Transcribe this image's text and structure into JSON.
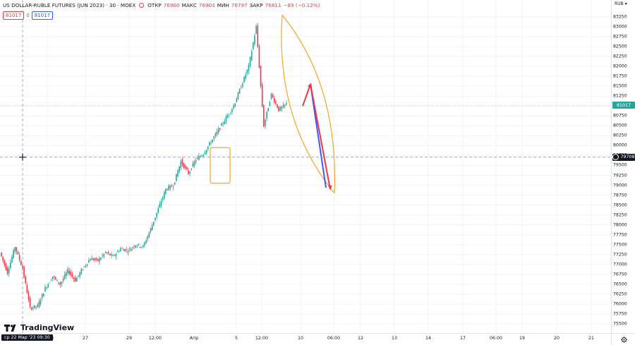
{
  "legend": {
    "title": "US DOLLAR-RUBLE FUTURES (JUN 2023) · 30 · MOEX",
    "open_label": "ОТКР",
    "open_value": "76900",
    "high_label": "МАКС",
    "high_value": "76903",
    "low_label": "МИН",
    "low_value": "76797",
    "close_label": "ЗАКР",
    "close_value": "76811",
    "change_value": "−89 (−0.12%)"
  },
  "price_boxes": {
    "bid": "81017",
    "spread": "0",
    "ask": "81017"
  },
  "currency": "RUB",
  "price_axis": {
    "ticks": [
      "83250",
      "83000",
      "82750",
      "82500",
      "82250",
      "82000",
      "81750",
      "81500",
      "81250",
      "81000",
      "80750",
      "80500",
      "80250",
      "80000",
      "79750",
      "79500",
      "79250",
      "79000",
      "78750",
      "78500",
      "78250",
      "78000",
      "77750",
      "77500",
      "77250",
      "77000",
      "76750",
      "76500",
      "76250",
      "76000",
      "75750",
      "75500"
    ],
    "last_price_tag": "81017",
    "crosshair_price_tag": "79708"
  },
  "time_axis": {
    "cursor_label": "ср 22 Мар '23  09:30",
    "labels": [
      "12:00",
      "27",
      "29",
      "12:00",
      "Апр",
      "5",
      "12:00",
      "10",
      "06:00",
      "12",
      "13",
      "14",
      "17",
      "06:00",
      "19",
      "20",
      "21"
    ]
  },
  "branding": {
    "logo_text": "TradingView"
  },
  "colors": {
    "up": "#26a69a",
    "down": "#f23645",
    "drawing_orange": "#f5a623",
    "drawing_blue": "#3d5afe",
    "drawing_red": "#f23645"
  },
  "chart_data": {
    "type": "candlestick",
    "title": "US DOLLAR-RUBLE FUTURES (JUN 2023) · 30 · MOEX",
    "ylim": [
      75400,
      83400
    ],
    "path_points": [
      [
        0,
        77300
      ],
      [
        1,
        76800
      ],
      [
        2,
        77450
      ],
      [
        3,
        76900
      ],
      [
        4,
        75900
      ],
      [
        5,
        75950
      ],
      [
        6,
        76400
      ],
      [
        7,
        76700
      ],
      [
        8,
        76500
      ],
      [
        9,
        76850
      ],
      [
        10,
        76600
      ],
      [
        11,
        76900
      ],
      [
        12,
        77150
      ],
      [
        13,
        77100
      ],
      [
        14,
        77300
      ],
      [
        15,
        77200
      ],
      [
        16,
        77400
      ],
      [
        17,
        77350
      ],
      [
        18,
        77500
      ],
      [
        19,
        77450
      ],
      [
        20,
        77900
      ],
      [
        21,
        78400
      ],
      [
        22,
        78900
      ],
      [
        23,
        79000
      ],
      [
        24,
        79600
      ],
      [
        25,
        79300
      ],
      [
        26,
        79650
      ],
      [
        27,
        79800
      ],
      [
        28,
        80100
      ],
      [
        29,
        80400
      ],
      [
        30,
        80700
      ],
      [
        31,
        81000
      ],
      [
        32,
        81500
      ],
      [
        33,
        82000
      ],
      [
        34,
        83000
      ],
      [
        35,
        80500
      ],
      [
        36,
        81300
      ],
      [
        37,
        80900
      ],
      [
        38,
        81050
      ]
    ],
    "projection": {
      "start": 81000,
      "peak": 81550,
      "target": 78900
    }
  }
}
